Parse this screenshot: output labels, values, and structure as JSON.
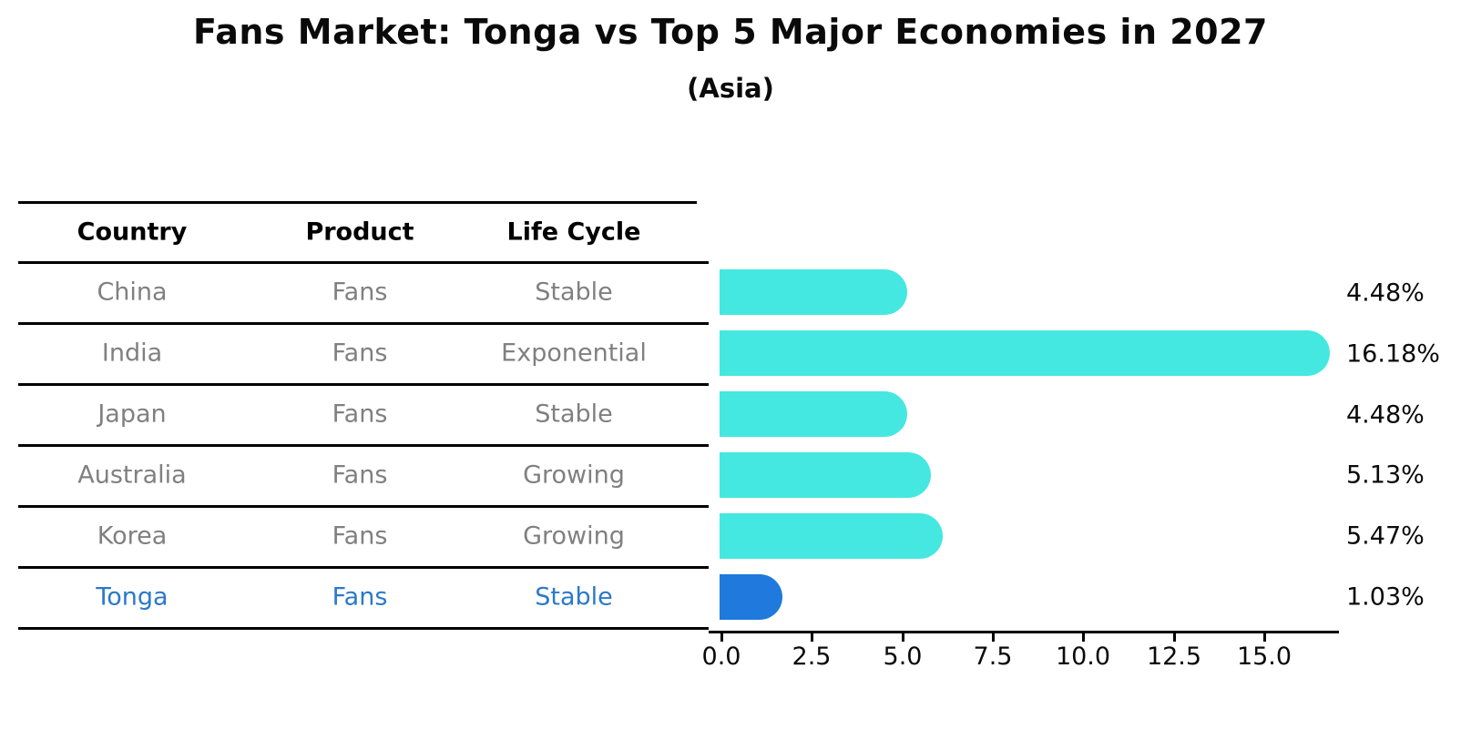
{
  "header": {
    "title": "Fans Market: Tonga vs Top 5 Major Economies in 2027",
    "subtitle": "(Asia)"
  },
  "table": {
    "columns": [
      "Country",
      "Product",
      "Life Cycle"
    ],
    "rows": [
      {
        "country": "China",
        "product": "Fans",
        "life_cycle": "Stable",
        "highlight": false
      },
      {
        "country": "India",
        "product": "Fans",
        "life_cycle": "Exponential",
        "highlight": false
      },
      {
        "country": "Japan",
        "product": "Fans",
        "life_cycle": "Stable",
        "highlight": false
      },
      {
        "country": "Australia",
        "product": "Fans",
        "life_cycle": "Growing",
        "highlight": false
      },
      {
        "country": "Korea",
        "product": "Fans",
        "life_cycle": "Growing",
        "highlight": false
      },
      {
        "country": "Tonga",
        "product": "Fans",
        "life_cycle": "Stable",
        "highlight": true
      }
    ]
  },
  "chart_data": {
    "type": "bar",
    "orientation": "horizontal",
    "title": "Fans Market: Tonga vs Top 5 Major Economies in 2027",
    "subtitle": "(Asia)",
    "categories": [
      "China",
      "India",
      "Japan",
      "Australia",
      "Korea",
      "Tonga"
    ],
    "values": [
      4.48,
      16.18,
      4.48,
      5.13,
      5.47,
      1.03
    ],
    "value_labels": [
      "4.48%",
      "16.18%",
      "4.48%",
      "5.13%",
      "5.47%",
      "1.03%"
    ],
    "x_tick_labels": [
      "0.0",
      "2.5",
      "5.0",
      "7.5",
      "10.0",
      "12.5",
      "15.0"
    ],
    "x_ticks": [
      0.0,
      2.5,
      5.0,
      7.5,
      10.0,
      12.5,
      15.0
    ],
    "xlim": [
      0,
      17.1
    ],
    "grid": false,
    "legend": "none",
    "highlight_index": 5
  },
  "colors": {
    "bar_cyan": "#45E7E1",
    "bar_blue": "#2079DC",
    "highlight_text": "#2C79C9",
    "text_gray": "#808080",
    "text_black": "#0a0a0a"
  }
}
